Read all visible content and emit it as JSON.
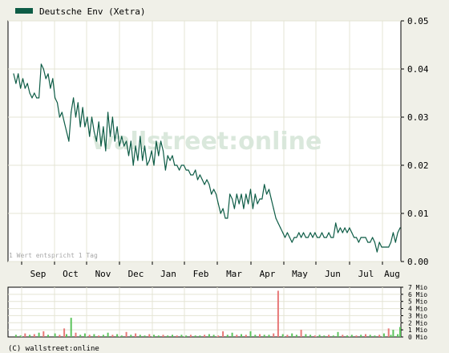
{
  "legend": {
    "label": "Deutsche Env (Xetra)",
    "color": "#0d5c46"
  },
  "watermark": {
    "text": "wallstreet:online"
  },
  "note": "1 Wert entspricht 1 Tag",
  "copyright": "(C) wallstreet:online",
  "colors": {
    "line": "#0d5c46",
    "grid": "#e4e4d4",
    "up": "#5cc45c",
    "down": "#e87878",
    "plot_bg": "#ffffff",
    "page_bg": "#f0f0e8"
  },
  "chart_data": [
    {
      "type": "line",
      "series": [
        {
          "name": "Deutsche Env (Xetra)"
        }
      ],
      "x_ticks": [
        "Sep",
        "Oct",
        "Nov",
        "Dec",
        "Jan",
        "Feb",
        "Mar",
        "Apr",
        "May",
        "Jun",
        "Jul",
        "Aug"
      ],
      "y_ticks": [
        "0.05",
        "0.04",
        "0.03",
        "0.02",
        "0.01",
        "0.00"
      ],
      "ylim": [
        0,
        0.05
      ],
      "grid": true,
      "points": [
        [
          0,
          0.039
        ],
        [
          1,
          0.037
        ],
        [
          2,
          0.039
        ],
        [
          3,
          0.036
        ],
        [
          4,
          0.038
        ],
        [
          5,
          0.036
        ],
        [
          6,
          0.037
        ],
        [
          7,
          0.035
        ],
        [
          8,
          0.034
        ],
        [
          9,
          0.035
        ],
        [
          10,
          0.034
        ],
        [
          11,
          0.034
        ],
        [
          12,
          0.041
        ],
        [
          13,
          0.04
        ],
        [
          14,
          0.038
        ],
        [
          15,
          0.039
        ],
        [
          16,
          0.036
        ],
        [
          17,
          0.038
        ],
        [
          18,
          0.034
        ],
        [
          19,
          0.033
        ],
        [
          20,
          0.03
        ],
        [
          21,
          0.031
        ],
        [
          22,
          0.029
        ],
        [
          23,
          0.027
        ],
        [
          24,
          0.025
        ],
        [
          25,
          0.031
        ],
        [
          26,
          0.034
        ],
        [
          27,
          0.03
        ],
        [
          28,
          0.033
        ],
        [
          29,
          0.028
        ],
        [
          30,
          0.032
        ],
        [
          31,
          0.028
        ],
        [
          32,
          0.03
        ],
        [
          33,
          0.026
        ],
        [
          34,
          0.03
        ],
        [
          35,
          0.027
        ],
        [
          36,
          0.025
        ],
        [
          37,
          0.029
        ],
        [
          38,
          0.024
        ],
        [
          39,
          0.028
        ],
        [
          40,
          0.023
        ],
        [
          41,
          0.031
        ],
        [
          42,
          0.026
        ],
        [
          43,
          0.03
        ],
        [
          44,
          0.025
        ],
        [
          45,
          0.028
        ],
        [
          46,
          0.024
        ],
        [
          47,
          0.026
        ],
        [
          48,
          0.024
        ],
        [
          49,
          0.025
        ],
        [
          50,
          0.022
        ],
        [
          51,
          0.025
        ],
        [
          52,
          0.02
        ],
        [
          53,
          0.024
        ],
        [
          54,
          0.021
        ],
        [
          55,
          0.026
        ],
        [
          56,
          0.021
        ],
        [
          57,
          0.024
        ],
        [
          58,
          0.02
        ],
        [
          59,
          0.021
        ],
        [
          60,
          0.023
        ],
        [
          61,
          0.02
        ],
        [
          62,
          0.025
        ],
        [
          63,
          0.022
        ],
        [
          64,
          0.025
        ],
        [
          65,
          0.023
        ],
        [
          66,
          0.019
        ],
        [
          67,
          0.022
        ],
        [
          68,
          0.021
        ],
        [
          69,
          0.022
        ],
        [
          70,
          0.02
        ],
        [
          71,
          0.02
        ],
        [
          72,
          0.019
        ],
        [
          73,
          0.02
        ],
        [
          74,
          0.02
        ],
        [
          75,
          0.019
        ],
        [
          76,
          0.019
        ],
        [
          77,
          0.018
        ],
        [
          78,
          0.018
        ],
        [
          79,
          0.019
        ],
        [
          80,
          0.017
        ],
        [
          81,
          0.018
        ],
        [
          82,
          0.017
        ],
        [
          83,
          0.016
        ],
        [
          84,
          0.017
        ],
        [
          85,
          0.016
        ],
        [
          86,
          0.014
        ],
        [
          87,
          0.015
        ],
        [
          88,
          0.014
        ],
        [
          89,
          0.012
        ],
        [
          90,
          0.01
        ],
        [
          91,
          0.011
        ],
        [
          92,
          0.009
        ],
        [
          93,
          0.009
        ],
        [
          94,
          0.014
        ],
        [
          95,
          0.013
        ],
        [
          96,
          0.011
        ],
        [
          97,
          0.014
        ],
        [
          98,
          0.012
        ],
        [
          99,
          0.014
        ],
        [
          100,
          0.011
        ],
        [
          101,
          0.014
        ],
        [
          102,
          0.012
        ],
        [
          103,
          0.015
        ],
        [
          104,
          0.011
        ],
        [
          105,
          0.014
        ],
        [
          106,
          0.012
        ],
        [
          107,
          0.013
        ],
        [
          108,
          0.013
        ],
        [
          109,
          0.016
        ],
        [
          110,
          0.014
        ],
        [
          111,
          0.015
        ],
        [
          112,
          0.013
        ],
        [
          113,
          0.011
        ],
        [
          114,
          0.009
        ],
        [
          115,
          0.008
        ],
        [
          116,
          0.007
        ],
        [
          117,
          0.006
        ],
        [
          118,
          0.005
        ],
        [
          119,
          0.006
        ],
        [
          120,
          0.005
        ],
        [
          121,
          0.004
        ],
        [
          122,
          0.005
        ],
        [
          123,
          0.005
        ],
        [
          124,
          0.006
        ],
        [
          125,
          0.005
        ],
        [
          126,
          0.006
        ],
        [
          127,
          0.005
        ],
        [
          128,
          0.005
        ],
        [
          129,
          0.006
        ],
        [
          130,
          0.005
        ],
        [
          131,
          0.006
        ],
        [
          132,
          0.005
        ],
        [
          133,
          0.005
        ],
        [
          134,
          0.006
        ],
        [
          135,
          0.005
        ],
        [
          136,
          0.005
        ],
        [
          137,
          0.006
        ],
        [
          138,
          0.005
        ],
        [
          139,
          0.005
        ],
        [
          140,
          0.008
        ],
        [
          141,
          0.006
        ],
        [
          142,
          0.007
        ],
        [
          143,
          0.006
        ],
        [
          144,
          0.007
        ],
        [
          145,
          0.006
        ],
        [
          146,
          0.007
        ],
        [
          147,
          0.006
        ],
        [
          148,
          0.005
        ],
        [
          149,
          0.005
        ],
        [
          150,
          0.004
        ],
        [
          151,
          0.005
        ],
        [
          152,
          0.005
        ],
        [
          153,
          0.005
        ],
        [
          154,
          0.004
        ],
        [
          155,
          0.004
        ],
        [
          156,
          0.005
        ],
        [
          157,
          0.004
        ],
        [
          158,
          0.002
        ],
        [
          159,
          0.004
        ],
        [
          160,
          0.003
        ],
        [
          161,
          0.003
        ],
        [
          162,
          0.003
        ],
        [
          163,
          0.003
        ],
        [
          164,
          0.004
        ],
        [
          165,
          0.006
        ],
        [
          166,
          0.004
        ],
        [
          167,
          0.006
        ],
        [
          168,
          0.007
        ]
      ]
    },
    {
      "type": "bar",
      "y_ticks": [
        "7 Mio",
        "6 Mio",
        "5 Mio",
        "4 Mio",
        "3 Mio",
        "2 Mio",
        "1 Mio",
        "0 Mio"
      ],
      "ylim": [
        0,
        7
      ],
      "bars": [
        [
          1,
          0.3,
          "up"
        ],
        [
          3,
          0.2,
          "up"
        ],
        [
          5,
          0.5,
          "down"
        ],
        [
          7,
          0.3,
          "up"
        ],
        [
          9,
          0.4,
          "down"
        ],
        [
          11,
          0.6,
          "up"
        ],
        [
          13,
          0.8,
          "down"
        ],
        [
          15,
          0.3,
          "up"
        ],
        [
          18,
          0.5,
          "up"
        ],
        [
          20,
          0.3,
          "down"
        ],
        [
          22,
          1.2,
          "down"
        ],
        [
          23,
          0.4,
          "up"
        ],
        [
          25,
          2.7,
          "up"
        ],
        [
          27,
          0.6,
          "down"
        ],
        [
          29,
          0.3,
          "up"
        ],
        [
          31,
          0.5,
          "up"
        ],
        [
          33,
          0.3,
          "down"
        ],
        [
          35,
          0.4,
          "up"
        ],
        [
          37,
          0.2,
          "down"
        ],
        [
          39,
          0.3,
          "up"
        ],
        [
          41,
          0.6,
          "up"
        ],
        [
          43,
          0.3,
          "down"
        ],
        [
          45,
          0.4,
          "up"
        ],
        [
          47,
          0.2,
          "up"
        ],
        [
          49,
          0.7,
          "down"
        ],
        [
          51,
          0.3,
          "up"
        ],
        [
          53,
          0.5,
          "down"
        ],
        [
          55,
          0.3,
          "up"
        ],
        [
          57,
          0.2,
          "up"
        ],
        [
          59,
          0.4,
          "down"
        ],
        [
          61,
          0.3,
          "up"
        ],
        [
          63,
          0.2,
          "up"
        ],
        [
          65,
          0.3,
          "down"
        ],
        [
          67,
          0.2,
          "up"
        ],
        [
          69,
          0.3,
          "up"
        ],
        [
          71,
          0.2,
          "down"
        ],
        [
          73,
          0.3,
          "up"
        ],
        [
          75,
          0.2,
          "up"
        ],
        [
          77,
          0.3,
          "down"
        ],
        [
          79,
          0.2,
          "up"
        ],
        [
          81,
          0.2,
          "up"
        ],
        [
          83,
          0.3,
          "down"
        ],
        [
          85,
          0.4,
          "up"
        ],
        [
          87,
          0.3,
          "up"
        ],
        [
          89,
          0.2,
          "down"
        ],
        [
          91,
          0.8,
          "down"
        ],
        [
          93,
          0.3,
          "up"
        ],
        [
          95,
          0.6,
          "up"
        ],
        [
          97,
          0.3,
          "down"
        ],
        [
          99,
          0.4,
          "up"
        ],
        [
          101,
          0.3,
          "down"
        ],
        [
          103,
          0.8,
          "up"
        ],
        [
          105,
          0.3,
          "up"
        ],
        [
          107,
          0.4,
          "down"
        ],
        [
          109,
          0.3,
          "up"
        ],
        [
          111,
          0.3,
          "up"
        ],
        [
          113,
          0.5,
          "down"
        ],
        [
          115,
          6.5,
          "down"
        ],
        [
          117,
          0.4,
          "up"
        ],
        [
          119,
          0.3,
          "down"
        ],
        [
          121,
          0.5,
          "up"
        ],
        [
          123,
          0.3,
          "up"
        ],
        [
          125,
          1.0,
          "down"
        ],
        [
          127,
          0.4,
          "up"
        ],
        [
          129,
          0.3,
          "up"
        ],
        [
          131,
          0.2,
          "down"
        ],
        [
          133,
          0.3,
          "up"
        ],
        [
          135,
          0.2,
          "up"
        ],
        [
          137,
          0.3,
          "down"
        ],
        [
          139,
          0.2,
          "up"
        ],
        [
          141,
          0.7,
          "up"
        ],
        [
          143,
          0.3,
          "down"
        ],
        [
          145,
          0.2,
          "up"
        ],
        [
          147,
          0.3,
          "up"
        ],
        [
          149,
          0.2,
          "down"
        ],
        [
          151,
          0.3,
          "up"
        ],
        [
          153,
          0.4,
          "down"
        ],
        [
          155,
          0.3,
          "up"
        ],
        [
          157,
          0.2,
          "up"
        ],
        [
          159,
          0.3,
          "down"
        ],
        [
          161,
          0.5,
          "up"
        ],
        [
          163,
          1.2,
          "down"
        ],
        [
          164,
          0.3,
          "up"
        ],
        [
          165,
          1.0,
          "up"
        ],
        [
          167,
          0.4,
          "up"
        ],
        [
          168,
          1.4,
          "up"
        ]
      ]
    }
  ]
}
